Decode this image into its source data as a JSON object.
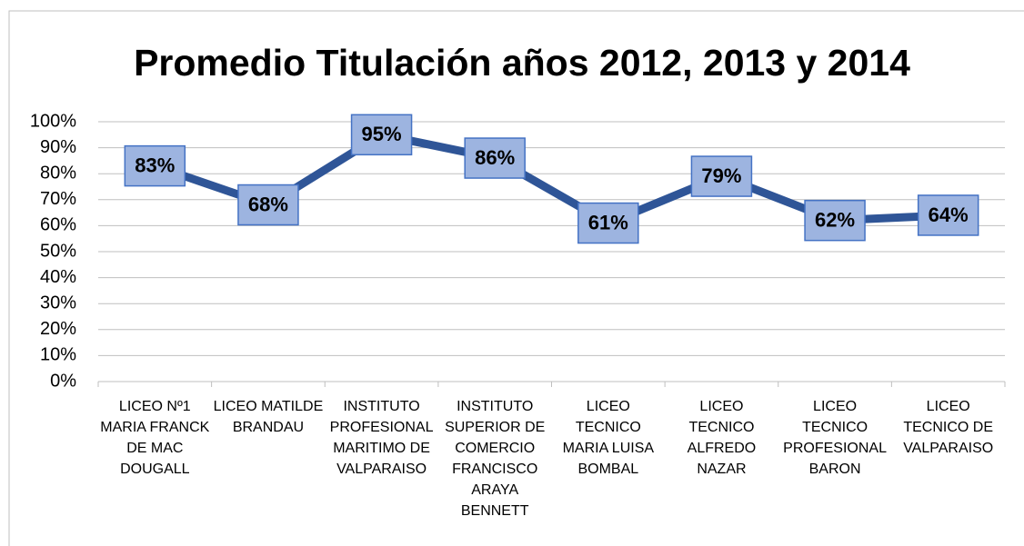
{
  "chart_data": {
    "type": "line",
    "title": "Promedio Titulación años 2012, 2013 y 2014",
    "categories": [
      "LICEO Nº1 MARIA FRANCK DE MAC DOUGALL",
      "LICEO MATILDE BRANDAU",
      "INSTITUTO PROFESIONAL MARITIMO DE VALPARAISO",
      "INSTITUTO SUPERIOR DE COMERCIO FRANCISCO ARAYA BENNETT",
      "LICEO TECNICO MARIA LUISA BOMBAL",
      "LICEO TECNICO ALFREDO NAZAR",
      "LICEO TECNICO PROFESIONAL BARON",
      "LICEO TECNICO DE VALPARAISO"
    ],
    "values": [
      83,
      68,
      95,
      86,
      61,
      79,
      62,
      64
    ],
    "value_labels": [
      "83%",
      "68%",
      "95%",
      "86%",
      "61%",
      "79%",
      "62%",
      "64%"
    ],
    "color": "#2f5597",
    "ylim": [
      0,
      100
    ],
    "yticks": [
      {
        "value": 0,
        "label": "0%"
      },
      {
        "value": 10,
        "label": "10%"
      },
      {
        "value": 20,
        "label": "20%"
      },
      {
        "value": 30,
        "label": "30%"
      },
      {
        "value": 40,
        "label": "40%"
      },
      {
        "value": 50,
        "label": "50%"
      },
      {
        "value": 60,
        "label": "60%"
      },
      {
        "value": 70,
        "label": "70%"
      },
      {
        "value": 80,
        "label": "80%"
      },
      {
        "value": 90,
        "label": "90%"
      },
      {
        "value": 100,
        "label": "100%"
      }
    ],
    "grid": true
  }
}
